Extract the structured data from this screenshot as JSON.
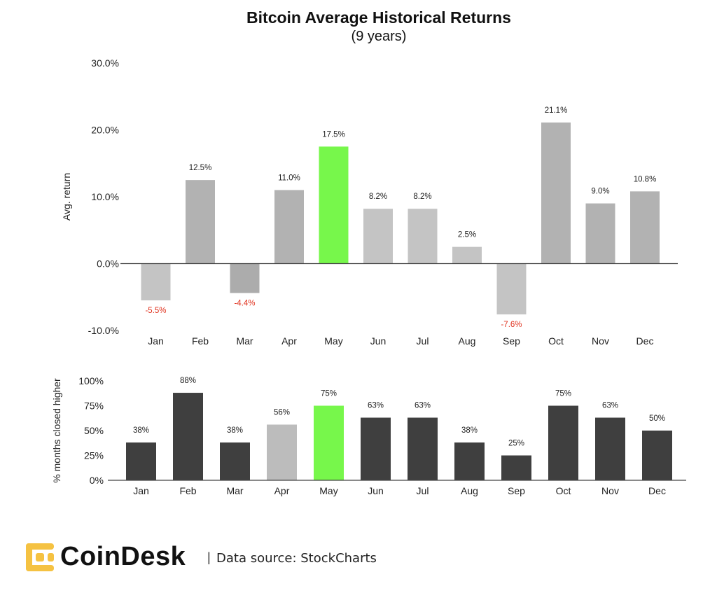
{
  "chart_data": [
    {
      "type": "bar",
      "title": "Bitcoin Average Historical Returns",
      "subtitle": "(9 years)",
      "ylabel": "Avg. return",
      "xlabel": "",
      "categories": [
        "Jan",
        "Feb",
        "Mar",
        "Apr",
        "May",
        "Jun",
        "Jul",
        "Aug",
        "Sep",
        "Oct",
        "Nov",
        "Dec"
      ],
      "values": [
        -5.5,
        12.5,
        -4.4,
        11.0,
        17.5,
        8.2,
        8.2,
        2.5,
        -7.6,
        21.1,
        9.0,
        10.8
      ],
      "value_labels": [
        "-5.5%",
        "12.5%",
        "-4.4%",
        "11.0%",
        "17.5%",
        "8.2%",
        "8.2%",
        "2.5%",
        "-7.6%",
        "21.1%",
        "9.0%",
        "10.8%"
      ],
      "yticks": [
        30,
        20,
        10,
        0,
        -10
      ],
      "ytick_labels": [
        "30.0%",
        "20.0%",
        "10.0%",
        "0.0%",
        "-10.0%"
      ],
      "ylim": [
        -10,
        30
      ],
      "bar_colors": [
        "#c4c4c4",
        "#b2b2b2",
        "#acacac",
        "#b2b2b2",
        "#77f74b",
        "#c4c4c4",
        "#c4c4c4",
        "#c4c4c4",
        "#c4c4c4",
        "#b2b2b2",
        "#b2b2b2",
        "#b2b2b2"
      ],
      "negative_label_color": "#e0321e",
      "grid": false
    },
    {
      "type": "bar",
      "ylabel": "% months closed higher",
      "xlabel": "",
      "categories": [
        "Jan",
        "Feb",
        "Mar",
        "Apr",
        "May",
        "Jun",
        "Jul",
        "Aug",
        "Sep",
        "Oct",
        "Nov",
        "Dec"
      ],
      "values": [
        38,
        88,
        38,
        56,
        75,
        63,
        63,
        38,
        25,
        75,
        63,
        50
      ],
      "value_labels": [
        "38%",
        "88%",
        "38%",
        "56%",
        "75%",
        "63%",
        "63%",
        "38%",
        "25%",
        "75%",
        "63%",
        "50%"
      ],
      "yticks": [
        100,
        75,
        50,
        25,
        0
      ],
      "ytick_labels": [
        "100%",
        "75%",
        "50%",
        "25%",
        "0%"
      ],
      "ylim": [
        0,
        100
      ],
      "bar_colors": [
        "#3f3f3f",
        "#3f3f3f",
        "#3f3f3f",
        "#bcbcbc",
        "#77f74b",
        "#3f3f3f",
        "#3f3f3f",
        "#3f3f3f",
        "#3f3f3f",
        "#3f3f3f",
        "#3f3f3f",
        "#3f3f3f"
      ],
      "grid": false
    }
  ],
  "footer": {
    "brand": "CoinDesk",
    "logo_icon": "coindesk-logo-icon",
    "logo_color": "#f5c242",
    "separator": "|",
    "source": "Data source: StockCharts"
  }
}
